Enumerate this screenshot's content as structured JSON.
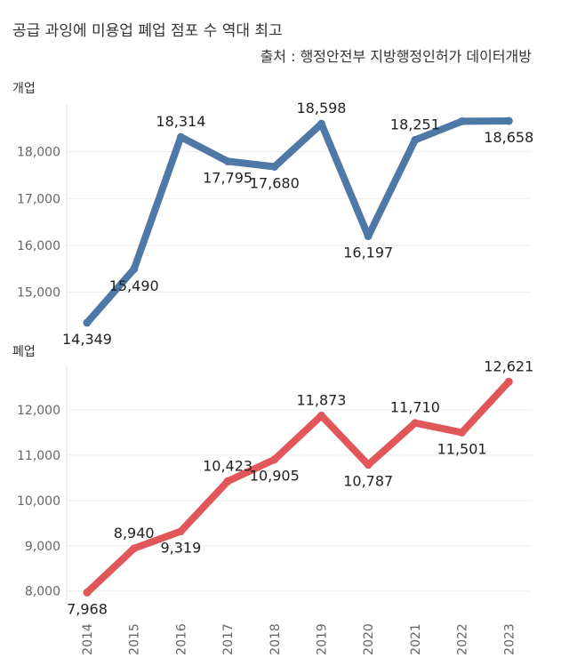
{
  "header": {
    "title": "공급 과잉에 미용업 폐업 점포 수 역대 최고",
    "source": "출처 : 행정안전부 지방행정인허가 데이터개방"
  },
  "chart_data": [
    {
      "type": "line",
      "title": "개업",
      "x": [
        "2014",
        "2015",
        "2016",
        "2017",
        "2018",
        "2019",
        "2020",
        "2021",
        "2022",
        "2023"
      ],
      "series": [
        {
          "name": "개업",
          "color": "#4e79a7",
          "values": [
            14349,
            15490,
            18314,
            17795,
            17680,
            18598,
            16197,
            18251,
            18650,
            18658
          ],
          "labels": [
            "14,349",
            "15,490",
            "18,314",
            "17,795",
            "17,680",
            "18,598",
            "16,197",
            "18,251",
            "",
            "18,658"
          ]
        }
      ],
      "ylim": [
        14100,
        19000
      ],
      "yticks": [
        15000,
        16000,
        17000,
        18000
      ],
      "ytick_labels": [
        "15,000",
        "16,000",
        "17,000",
        "18,000"
      ],
      "grid": true
    },
    {
      "type": "line",
      "title": "폐업",
      "x": [
        "2014",
        "2015",
        "2016",
        "2017",
        "2018",
        "2019",
        "2020",
        "2021",
        "2022",
        "2023"
      ],
      "series": [
        {
          "name": "폐업",
          "color": "#e15759",
          "values": [
            7968,
            8940,
            9319,
            10423,
            10905,
            11873,
            10787,
            11710,
            11501,
            12621
          ],
          "labels": [
            "7,968",
            "8,940",
            "9,319",
            "10,423",
            "10,905",
            "11,873",
            "10,787",
            "11,710",
            "11,501",
            "12,621"
          ]
        }
      ],
      "ylim": [
        7700,
        13000
      ],
      "yticks": [
        8000,
        9000,
        10000,
        11000,
        12000
      ],
      "ytick_labels": [
        "8,000",
        "9,000",
        "10,000",
        "11,000",
        "12,000"
      ],
      "grid": true
    }
  ]
}
